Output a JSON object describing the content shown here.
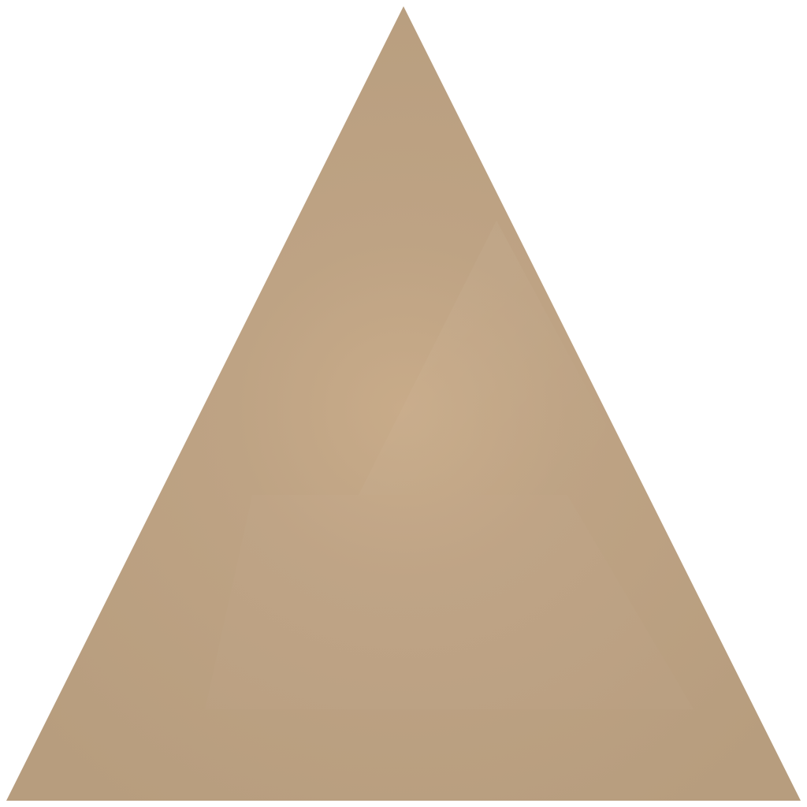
{
  "shape": {
    "kind": "triangle",
    "orientation": "point-up",
    "fill_color": "#bea384",
    "highlight_color": "#c8ab89",
    "edge_color": "#b79d7e"
  },
  "background": {
    "color": "#ffffff"
  }
}
